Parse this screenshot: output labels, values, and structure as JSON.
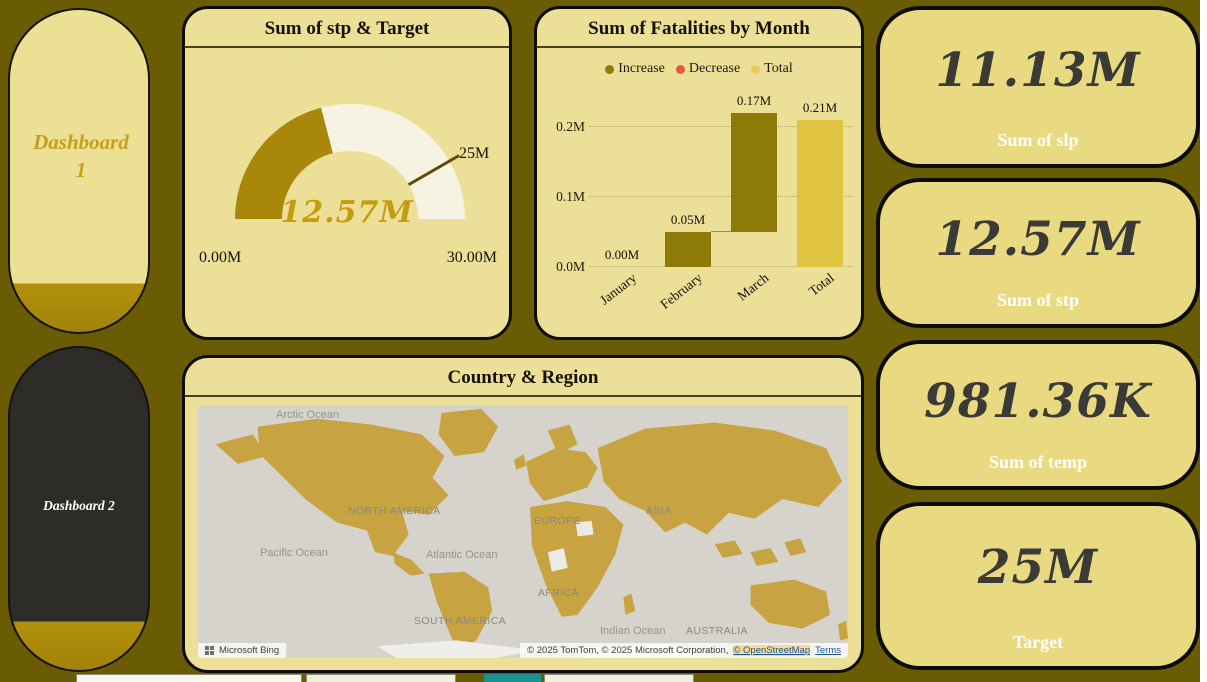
{
  "sidebar": {
    "items": [
      {
        "label": "Dashboard 1"
      },
      {
        "label": "Dashboard 2"
      }
    ]
  },
  "gauge_card": {
    "title": "Sum of stp & Target",
    "value_label": "12.57M",
    "min_label": "0.00M",
    "max_label": "30.00M",
    "target_label": "25M"
  },
  "waterfall_card": {
    "title": "Sum of Fatalities by Month",
    "legend": [
      {
        "label": "Increase",
        "color": "#8d7a07"
      },
      {
        "label": "Decrease",
        "color": "#e0584a"
      },
      {
        "label": "Total",
        "color": "#e8cc5e"
      }
    ],
    "y_ticks": [
      "0.0M",
      "0.1M",
      "0.2M"
    ]
  },
  "map_card": {
    "title": "Country & Region",
    "labels": {
      "arctic": "Arctic Ocean",
      "north_america": "NORTH AMERICA",
      "pacific": "Pacific Ocean",
      "atlantic": "Atlantic Ocean",
      "europe": "EUROPE",
      "asia": "ASIA",
      "africa": "AFRICA",
      "south_america": "SOUTH AMERICA",
      "indian": "Indian Ocean",
      "australia": "AUSTRALIA"
    },
    "attribution": {
      "provider": "Microsoft Bing",
      "copyright": "© 2025 TomTom, © 2025 Microsoft Corporation,",
      "osm": "© OpenStreetMap",
      "terms": "Terms"
    }
  },
  "kpi_cards": [
    {
      "value": "11.13M",
      "label": "Sum of slp"
    },
    {
      "value": "12.57M",
      "label": "Sum of stp"
    },
    {
      "value": "981.36K",
      "label": "Sum of temp"
    },
    {
      "value": "25M",
      "label": "Target"
    }
  ],
  "chart_data": [
    {
      "type": "gauge",
      "title": "Sum of stp & Target",
      "value": 12.57,
      "min": 0,
      "max": 30,
      "target": 25,
      "unit": "M",
      "colors": {
        "fill": "#a8870b",
        "track": "#f7f3e2"
      }
    },
    {
      "type": "waterfall",
      "title": "Sum of Fatalities by Month",
      "categories": [
        "January",
        "February",
        "March",
        "Total"
      ],
      "increments": [
        0.0,
        0.05,
        0.17
      ],
      "total": 0.21,
      "unit": "M",
      "ylim": [
        0,
        0.23
      ],
      "y_ticks": [
        "0.0M",
        "0.1M",
        "0.2M"
      ],
      "legend": [
        "Increase",
        "Decrease",
        "Total"
      ],
      "legend_position": "top",
      "bars": [
        {
          "label": "January",
          "start": 0,
          "end": 0,
          "display": "0.00M",
          "kind": "increase"
        },
        {
          "label": "February",
          "start": 0,
          "end": 0.05,
          "display": "0.05M",
          "kind": "increase"
        },
        {
          "label": "March",
          "start": 0.05,
          "end": 0.22,
          "display": "0.17M",
          "kind": "increase"
        },
        {
          "label": "Total",
          "start": 0,
          "end": 0.21,
          "display": "0.21M",
          "kind": "total"
        }
      ]
    },
    {
      "type": "map",
      "title": "Country & Region",
      "highlight_color": "#c7a441"
    }
  ]
}
